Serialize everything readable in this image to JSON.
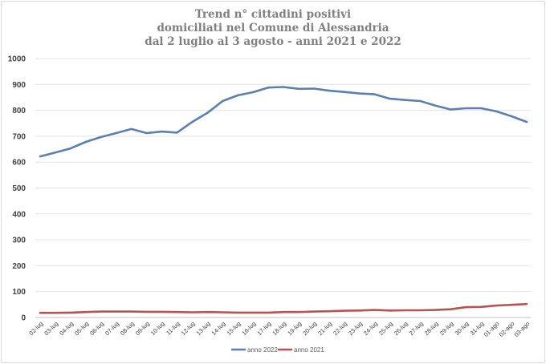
{
  "chart_data": {
    "type": "line",
    "title_lines": [
      "Trend n° cittadini positivi",
      "domiciliati nel Comune di Alessandria",
      "dal 2 luglio al 3 agosto - anni 2021 e 2022"
    ],
    "xlabel": "",
    "ylabel": "",
    "ylim": [
      0,
      1000
    ],
    "yticks": [
      0,
      100,
      200,
      300,
      400,
      500,
      600,
      700,
      800,
      900,
      1000
    ],
    "grid": true,
    "legend_position": "bottom",
    "categories": [
      "02-lug",
      "03-lug",
      "04-lug",
      "05-lug",
      "06-lug",
      "07-lug",
      "08-lug",
      "09-lug",
      "10-lug",
      "11-lug",
      "12-lug",
      "13-lug",
      "14-lug",
      "15-lug",
      "16-lug",
      "17-lug",
      "18-lug",
      "19-lug",
      "20-lug",
      "21-lug",
      "22-lug",
      "23-lug",
      "24-lug",
      "25-lug",
      "26-lug",
      "27-lug",
      "28-lug",
      "29-lug",
      "30-lug",
      "31-lug",
      "01-ago",
      "02-ago",
      "03-ago"
    ],
    "series": [
      {
        "name": "anno 2022",
        "color": "#5b7fb0",
        "values": [
          622,
          637,
          653,
          678,
          697,
          712,
          728,
          712,
          718,
          714,
          755,
          790,
          836,
          858,
          870,
          888,
          890,
          883,
          884,
          876,
          871,
          865,
          862,
          845,
          840,
          836,
          818,
          803,
          808,
          808,
          796,
          777,
          755
        ]
      },
      {
        "name": "anno 2021",
        "color": "#b55551",
        "values": [
          18,
          18,
          19,
          21,
          23,
          23,
          23,
          22,
          22,
          21,
          20,
          21,
          20,
          19,
          19,
          19,
          21,
          21,
          23,
          24,
          26,
          27,
          29,
          27,
          28,
          28,
          29,
          32,
          40,
          41,
          46,
          49,
          52
        ]
      }
    ]
  }
}
